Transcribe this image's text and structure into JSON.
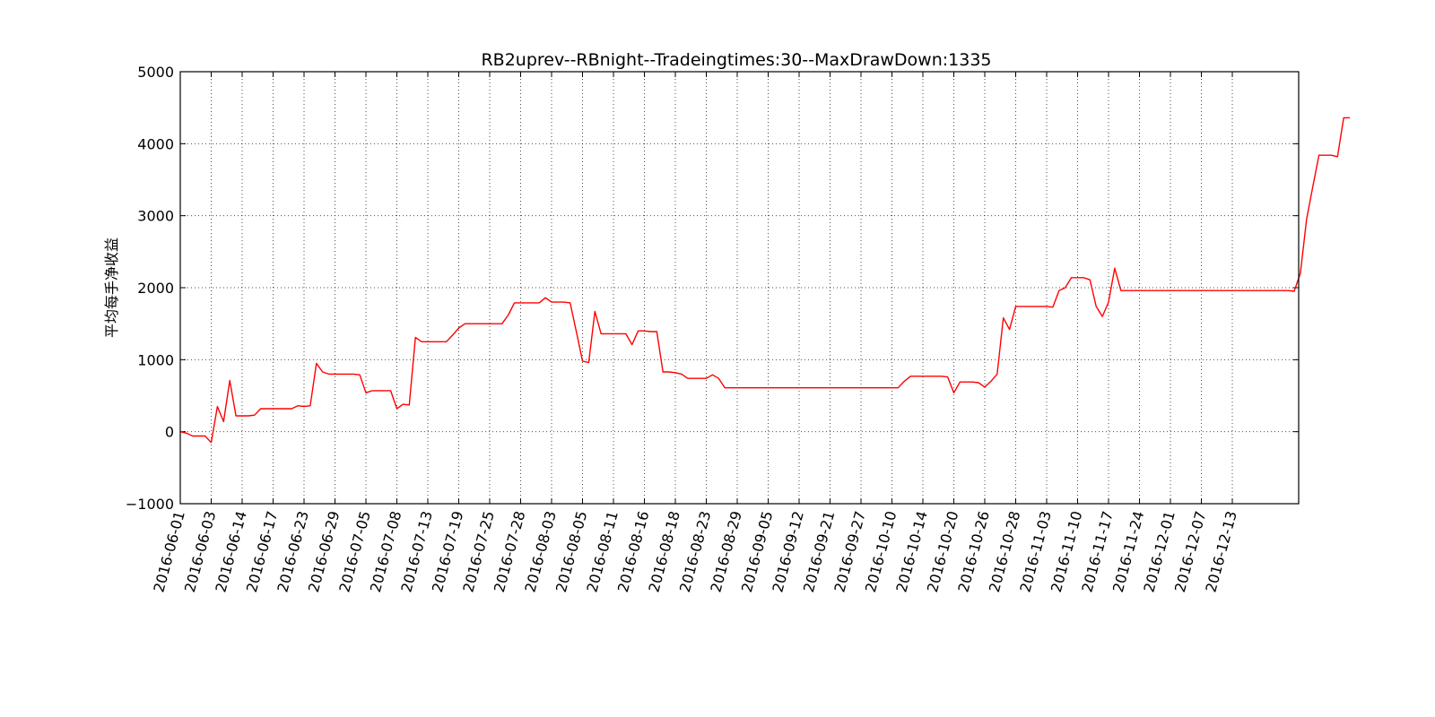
{
  "chart_data": {
    "type": "line",
    "title": "RB2uprev--RBnight--Tradeingtimes:30--MaxDrawDown:1335",
    "xlabel": "",
    "ylabel": "平均每手净收益",
    "ylim": [
      -1000,
      5000
    ],
    "yticks": [
      "−1000",
      "0",
      "1000",
      "2000",
      "3000",
      "4000",
      "5000"
    ],
    "grid": true,
    "line_color": "#ff0000",
    "x_tick_labels": [
      "2016-06-01",
      "2016-06-03",
      "2016-06-14",
      "2016-06-17",
      "2016-06-23",
      "2016-06-29",
      "2016-07-05",
      "2016-07-08",
      "2016-07-13",
      "2016-07-19",
      "2016-07-25",
      "2016-07-28",
      "2016-08-03",
      "2016-08-05",
      "2016-08-11",
      "2016-08-16",
      "2016-08-18",
      "2016-08-23",
      "2016-08-29",
      "2016-09-05",
      "2016-09-12",
      "2016-09-21",
      "2016-09-27",
      "2016-10-10",
      "2016-10-14",
      "2016-10-20",
      "2016-10-26",
      "2016-10-28",
      "2016-11-03",
      "2016-11-10",
      "2016-11-17",
      "2016-11-24",
      "2016-12-01",
      "2016-12-07",
      "2016-12-13"
    ],
    "n_points": 180,
    "series": [
      {
        "values": [
          0,
          -20,
          -60,
          -60,
          -60,
          -150,
          350,
          140,
          710,
          220,
          220,
          220,
          230,
          320,
          320,
          320,
          320,
          320,
          320,
          360,
          350,
          360,
          950,
          830,
          800,
          800,
          800,
          800,
          800,
          790,
          540,
          570,
          570,
          570,
          570,
          320,
          380,
          370,
          1310,
          1250,
          1250,
          1250,
          1250,
          1250,
          1340,
          1440,
          1500,
          1500,
          1500,
          1500,
          1500,
          1500,
          1500,
          1620,
          1790,
          1790,
          1790,
          1790,
          1790,
          1860,
          1800,
          1800,
          1800,
          1790,
          1390,
          980,
          960,
          1670,
          1360,
          1360,
          1360,
          1360,
          1360,
          1210,
          1400,
          1400,
          1390,
          1390,
          830,
          830,
          820,
          800,
          740,
          740,
          740,
          740,
          790,
          740,
          610,
          610,
          610,
          610,
          610,
          610,
          610,
          610,
          610,
          610,
          610,
          610,
          610,
          610,
          610,
          610,
          610,
          610,
          610,
          610,
          610,
          610,
          610,
          610,
          610,
          610,
          610,
          610,
          610,
          700,
          770,
          770,
          770,
          770,
          770,
          770,
          760,
          540,
          690,
          690,
          690,
          680,
          620,
          700,
          800,
          1580,
          1420,
          1740,
          1740,
          1740,
          1740,
          1740,
          1740,
          1730,
          1960,
          2000,
          2140,
          2140,
          2140,
          2110,
          1740,
          1600,
          1800,
          2270,
          1960,
          1960,
          1960,
          1960,
          1960,
          1960,
          1960,
          1960,
          1960,
          1960,
          1960,
          1960,
          1960,
          1960,
          1960,
          1960,
          1960,
          1960,
          1960,
          1960,
          1960,
          1960,
          1960,
          1960,
          1960,
          1960,
          1960,
          1960,
          1950,
          2200,
          2950,
          3400,
          3840,
          3840,
          3840,
          3820,
          4360,
          4360
        ]
      }
    ]
  }
}
